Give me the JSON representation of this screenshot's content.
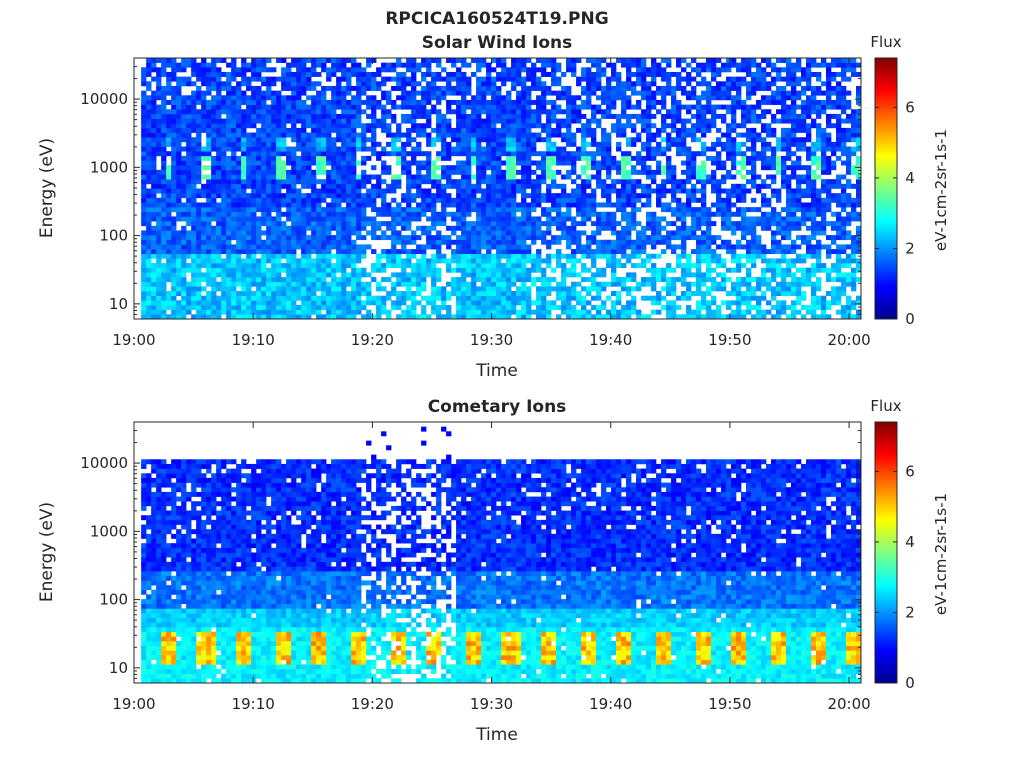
{
  "figure": {
    "title": "RPCICA160524T19.PNG"
  },
  "colorbar": {
    "label": "Flux",
    "unit": "eV-1cm-2sr-1s-1",
    "ticks": [
      "0",
      "2",
      "4",
      "6"
    ],
    "range": [
      0,
      7.4
    ],
    "colormap": "jet"
  },
  "chart_data": [
    {
      "type": "heatmap",
      "title": "Solar Wind Ions",
      "xlabel": "Time",
      "ylabel": "Energy (eV)",
      "xticks": [
        "19:00",
        "19:10",
        "19:20",
        "19:30",
        "19:40",
        "19:50",
        "20:00"
      ],
      "xlim": [
        "19:00",
        "20:01"
      ],
      "yticks": [
        "10",
        "100",
        "1000",
        "10000"
      ],
      "yscale": "log",
      "ylim": [
        6,
        40000
      ],
      "zlim": [
        0,
        7.4
      ],
      "features": {
        "background_flux": 1.0,
        "periodic_peak_energy_eV": 1000,
        "periodic_peak_interval_min": 3.2,
        "periodic_peak_flux": 3.0,
        "low_energy_band_eV": [
          6,
          55
        ],
        "low_energy_flux": 2.3,
        "sparse_after": "19:33",
        "burst_interval": [
          "19:19",
          "19:27"
        ]
      }
    },
    {
      "type": "heatmap",
      "title": "Cometary Ions",
      "xlabel": "Time",
      "ylabel": "Energy (eV)",
      "xticks": [
        "19:00",
        "19:10",
        "19:20",
        "19:30",
        "19:40",
        "19:50",
        "20:00"
      ],
      "xlim": [
        "19:00",
        "20:01"
      ],
      "yticks": [
        "10",
        "100",
        "1000",
        "10000"
      ],
      "yscale": "log",
      "ylim": [
        6,
        40000
      ],
      "zlim": [
        0,
        7.4
      ],
      "features": {
        "max_energy_eV": 11000,
        "background_flux": 0.9,
        "low_energy_band_eV": [
          6,
          40
        ],
        "low_energy_peak_flux": 5.0,
        "periodic_peak_interval_min": 3.2,
        "burst_interval": [
          "19:19",
          "19:27"
        ]
      }
    }
  ]
}
